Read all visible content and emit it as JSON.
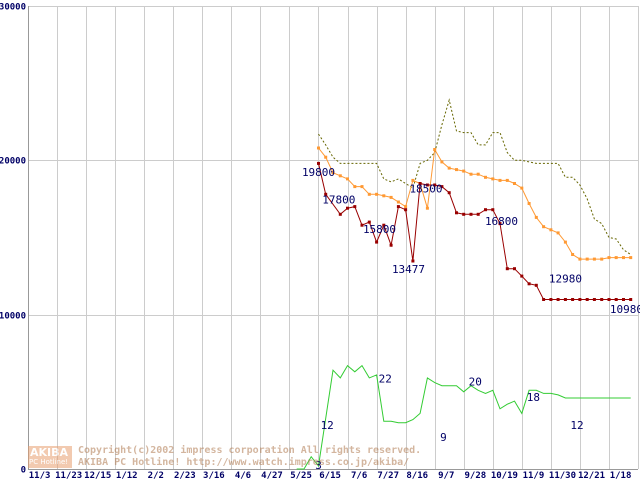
{
  "chart_data": {
    "type": "line",
    "title": "",
    "xlabel": "",
    "ylabel": "",
    "ylim": [
      0,
      30000
    ],
    "y_ticks": [
      {
        "value": 30000,
        "label": "30000"
      },
      {
        "value": 20000,
        "label": "20000"
      },
      {
        "value": 10000,
        "label": "10000"
      },
      {
        "value": 0,
        "label": "0"
      }
    ],
    "grid": true,
    "legend": "none",
    "x_tick_labels": [
      "11/3",
      "11/23",
      "12/15",
      "1/12",
      "2/2",
      "2/23",
      "3/16",
      "4/6",
      "4/27",
      "5/25",
      "6/15",
      "7/6",
      "7/27",
      "8/16",
      "9/7",
      "9/28",
      "10/19",
      "11/9",
      "11/30",
      "12/21",
      "1/18"
    ],
    "x_start": 0,
    "x_end": 21,
    "series": [
      {
        "color": "#666600",
        "dash": "2,2",
        "style": "dotted-line",
        "x": [
          10.0,
          10.25,
          10.5,
          10.75,
          11.0,
          11.5,
          11.75,
          12.0,
          12.25,
          12.5,
          12.75,
          13.0,
          13.25,
          13.5,
          13.75,
          14.0,
          14.25,
          14.5,
          14.75,
          15.0,
          15.25,
          15.5,
          15.75,
          16.0,
          16.25,
          16.5,
          16.75,
          17.0,
          17.25,
          17.5,
          17.75,
          18.0,
          18.25,
          18.5,
          18.75,
          19.0,
          19.25,
          19.5,
          19.75,
          20.0,
          20.25,
          20.5,
          20.75
        ],
        "values": [
          21700,
          21000,
          20200,
          19800,
          19800,
          19800,
          19800,
          19800,
          18800,
          18600,
          18800,
          18500,
          18200,
          19800,
          20000,
          20500,
          22300,
          23900,
          21900,
          21800,
          21800,
          21000,
          21000,
          21800,
          21800,
          20500,
          20000,
          20000,
          19900,
          19800,
          19800,
          19800,
          19800,
          18900,
          18900,
          18400,
          17500,
          16200,
          15900,
          15000,
          14900,
          14200,
          13900
        ]
      },
      {
        "color": "#ff9933",
        "style": "line-with-square-markers",
        "x": [
          10.0,
          10.25,
          10.5,
          10.75,
          11.0,
          11.25,
          11.5,
          11.75,
          12.0,
          12.25,
          12.5,
          12.75,
          13.0,
          13.25,
          13.5,
          13.75,
          14.0,
          14.25,
          14.5,
          14.75,
          15.0,
          15.25,
          15.5,
          15.75,
          16.0,
          16.25,
          16.5,
          16.75,
          17.0,
          17.25,
          17.5,
          17.75,
          18.0,
          18.25,
          18.5,
          18.75,
          19.0,
          19.25,
          19.5,
          19.75,
          20.0,
          20.25,
          20.5,
          20.75
        ],
        "values": [
          20800,
          20200,
          19200,
          19000,
          18800,
          18300,
          18300,
          17800,
          17800,
          17700,
          17600,
          17300,
          17000,
          18700,
          18500,
          16900,
          20700,
          19900,
          19500,
          19400,
          19300,
          19100,
          19100,
          18900,
          18800,
          18700,
          18700,
          18500,
          18200,
          17200,
          16300,
          15700,
          15500,
          15300,
          14700,
          13900,
          13600,
          13600,
          13600,
          13600,
          13700,
          13700,
          13700,
          13700
        ]
      },
      {
        "color": "#990000",
        "style": "line-with-square-markers",
        "x": [
          10.0,
          10.25,
          10.75,
          11.0,
          11.25,
          11.5,
          11.75,
          12.0,
          12.25,
          12.5,
          12.75,
          13.0,
          13.25,
          13.5,
          13.75,
          14.0,
          14.25,
          14.5,
          14.75,
          15.0,
          15.25,
          15.5,
          15.75,
          16.0,
          16.25,
          16.5,
          16.75,
          17.0,
          17.25,
          17.5,
          17.75,
          18.0,
          18.25,
          18.5,
          18.75,
          19.0,
          19.25,
          19.5,
          19.75,
          20.0,
          20.25,
          20.5,
          20.75
        ],
        "values": [
          19800,
          17800,
          16500,
          16900,
          17000,
          15800,
          16000,
          14700,
          15800,
          14500,
          17000,
          16800,
          13477,
          18500,
          18400,
          18400,
          18300,
          17900,
          16600,
          16500,
          16500,
          16500,
          16800,
          16800,
          15900,
          12980,
          12980,
          12500,
          12000,
          11900,
          10980,
          10980,
          10980,
          10980,
          10980,
          10980,
          10980,
          10980,
          10980,
          10980,
          10980,
          10980,
          10980
        ]
      },
      {
        "color": "#33cc33",
        "style": "line",
        "x": [
          9.25,
          9.5,
          9.75,
          10.0,
          10.5,
          10.75,
          11.0,
          11.25,
          11.5,
          11.75,
          12.0,
          12.25,
          12.5,
          12.75,
          13.0,
          13.25,
          13.5,
          13.75,
          14.0,
          14.25,
          14.5,
          14.75,
          15.0,
          15.25,
          15.5,
          15.75,
          16.0,
          16.25,
          16.5,
          16.75,
          17.0,
          17.25,
          17.5,
          17.75,
          18.0,
          18.25,
          18.5,
          18.75,
          19.0,
          19.25,
          19.5,
          19.75,
          20.0,
          20.25,
          20.5,
          20.75
        ],
        "values": [
          0,
          0,
          800,
          200,
          6400,
          5900,
          6700,
          6300,
          6700,
          5900,
          6100,
          3100,
          3100,
          3000,
          3000,
          3200,
          3600,
          5900,
          5600,
          5400,
          5400,
          5400,
          5000,
          5400,
          5100,
          4900,
          5100,
          3900,
          4200,
          4400,
          3600,
          5100,
          5100,
          4900,
          4900,
          4800,
          4600,
          4600,
          4600,
          4600,
          4600,
          4600,
          4600,
          4600,
          4600,
          4600
        ]
      }
    ],
    "price_labels": [
      {
        "text": "19800",
        "x": 10.0,
        "y": 19000
      },
      {
        "text": "17800",
        "x": 10.7,
        "y": 17200
      },
      {
        "text": "15800",
        "x": 12.1,
        "y": 15300
      },
      {
        "text": "13477",
        "x": 13.1,
        "y": 12700
      },
      {
        "text": "18500",
        "x": 13.7,
        "y": 17900
      },
      {
        "text": "16800",
        "x": 16.3,
        "y": 15800
      },
      {
        "text": "12980",
        "x": 18.5,
        "y": 12100
      },
      {
        "text": "10980",
        "x": 20.6,
        "y": 10100
      }
    ],
    "count_labels": [
      {
        "text": "3",
        "x": 10.0,
        "y": 0
      },
      {
        "text": "12",
        "x": 10.3,
        "y": 2600
      },
      {
        "text": "22",
        "x": 12.3,
        "y": 5600
      },
      {
        "text": "9",
        "x": 14.3,
        "y": 1800
      },
      {
        "text": "20",
        "x": 15.4,
        "y": 5400
      },
      {
        "text": "18",
        "x": 17.4,
        "y": 4400
      },
      {
        "text": "12",
        "x": 18.9,
        "y": 2600
      }
    ]
  },
  "watermark": {
    "logo_top": "AKIBA",
    "logo_bottom": "PC Hotline!",
    "line1": "Copyright(c)2002 impress corporation All rights reserved.",
    "line2": "AKIBA PC Hotline! http://www.watch.impress.co.jp/akiba/"
  }
}
